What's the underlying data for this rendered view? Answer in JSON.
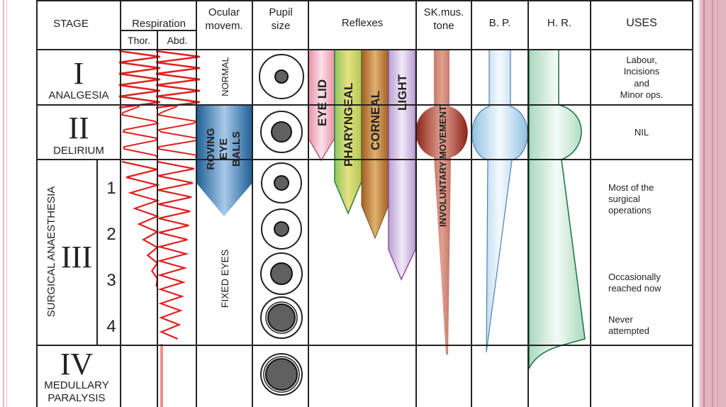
{
  "header": {
    "stage": "STAGE",
    "respiration": "Respiration",
    "thor": "Thor.",
    "abd": "Abd.",
    "ocular_1": "Ocular",
    "ocular_2": "movem.",
    "pupil_1": "Pupil",
    "pupil_2": "size",
    "reflexes": "Reflexes",
    "sk_1": "SK.mus.",
    "sk_2": "tone",
    "bp": "B. P.",
    "hr": "H. R.",
    "uses": "USES"
  },
  "stages": [
    {
      "numeral": "I",
      "name": "ANALGESIA"
    },
    {
      "numeral": "II",
      "name": "DELIRIUM"
    },
    {
      "numeral": "III",
      "name": "SURGICAL ANAESTHESIA",
      "planes": [
        "1",
        "2",
        "3",
        "4"
      ]
    },
    {
      "numeral": "IV",
      "name_1": "MEDULLARY",
      "name_2": "PARALYSIS"
    }
  ],
  "ocular": {
    "normal": "NORMAL",
    "roving": [
      "ROVING",
      "EYE",
      "BALLS"
    ],
    "fixed": "FIXED EYES"
  },
  "reflexes": [
    {
      "label": "EYE LID",
      "color": "#f0b8c8"
    },
    {
      "label": "PHARYNGEAL",
      "color": "#d8e070"
    },
    {
      "label": "CORNEAL",
      "color": "#c08040"
    },
    {
      "label": "LIGHT",
      "color": "#d8c8e8"
    }
  ],
  "sk_tone_label": "INVOLUNTARY MOVEMENT",
  "uses": {
    "stage1": [
      "Labour,",
      "Incisions",
      "and",
      "Minor ops."
    ],
    "stage2": "NIL",
    "plane1": [
      "Most of the",
      "surgical",
      "operations"
    ],
    "plane3": [
      "Occasionally",
      "reached now"
    ],
    "plane4": [
      "Never",
      "attempted"
    ]
  },
  "colors": {
    "respiration": "#e02020",
    "roving": "#3a7ab0",
    "sk_tone": "#a83828",
    "bp": "#b8dcf0",
    "hr": "#c8ead8",
    "frame": "#e0b0bc"
  }
}
